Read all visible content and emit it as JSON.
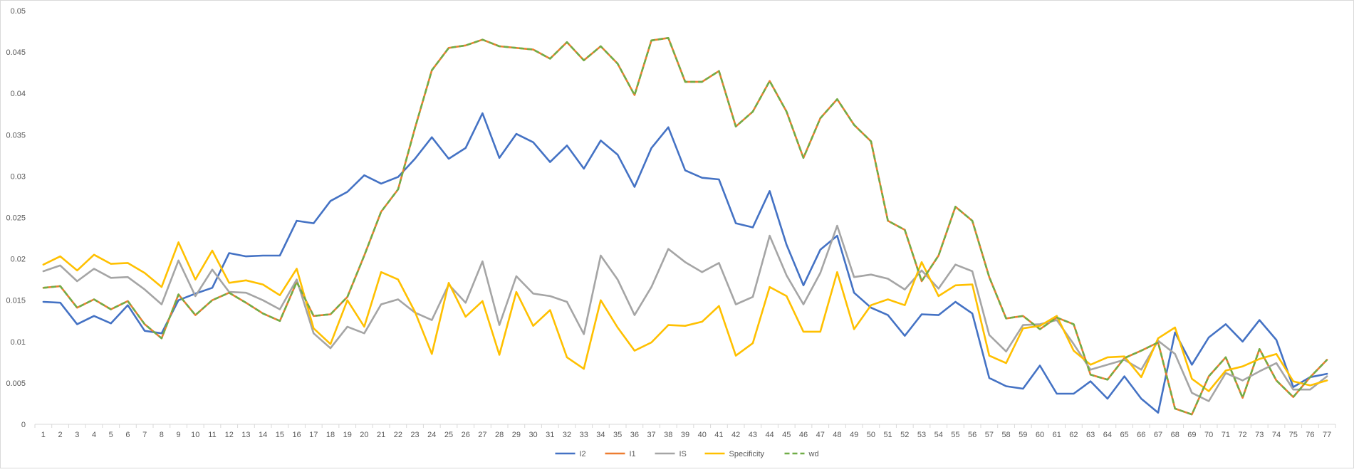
{
  "chart_data": {
    "type": "line",
    "title": "",
    "xlabel": "",
    "ylabel": "",
    "ylim": [
      0,
      0.05
    ],
    "y_ticks": [
      "0",
      "0.005",
      "0.01",
      "0.015",
      "0.02",
      "0.025",
      "0.03",
      "0.035",
      "0.04",
      "0.045",
      "0.05"
    ],
    "grid": false,
    "legend_position": "bottom",
    "categories": [
      "1",
      "2",
      "3",
      "4",
      "5",
      "6",
      "7",
      "8",
      "9",
      "10",
      "11",
      "12",
      "13",
      "14",
      "15",
      "16",
      "17",
      "18",
      "19",
      "20",
      "21",
      "22",
      "23",
      "24",
      "25",
      "26",
      "27",
      "28",
      "29",
      "30",
      "31",
      "32",
      "33",
      "34",
      "35",
      "36",
      "37",
      "38",
      "39",
      "40",
      "41",
      "42",
      "43",
      "44",
      "45",
      "46",
      "47",
      "48",
      "49",
      "50",
      "51",
      "52",
      "53",
      "54",
      "55",
      "56",
      "57",
      "58",
      "59",
      "60",
      "61",
      "62",
      "63",
      "64",
      "65",
      "66",
      "67",
      "68",
      "69",
      "70",
      "71",
      "72",
      "73",
      "74",
      "75",
      "76",
      "77"
    ],
    "series": [
      {
        "name": "I2",
        "color": "#4472C4",
        "dashed": false,
        "values": [
          0.0148,
          0.0147,
          0.0121,
          0.0131,
          0.0122,
          0.0144,
          0.0113,
          0.011,
          0.015,
          0.0158,
          0.0165,
          0.0207,
          0.0203,
          0.0204,
          0.0204,
          0.0246,
          0.0243,
          0.027,
          0.0281,
          0.0301,
          0.0291,
          0.0299,
          0.0321,
          0.0347,
          0.0321,
          0.0334,
          0.0376,
          0.0322,
          0.0351,
          0.0341,
          0.0317,
          0.0337,
          0.0309,
          0.0343,
          0.0326,
          0.0287,
          0.0334,
          0.0359,
          0.0307,
          0.0298,
          0.0296,
          0.0243,
          0.0238,
          0.0282,
          0.0217,
          0.0168,
          0.0211,
          0.0228,
          0.0159,
          0.0141,
          0.0132,
          0.0107,
          0.0133,
          0.0132,
          0.0148,
          0.0134,
          0.0056,
          0.0046,
          0.0043,
          0.0071,
          0.0037,
          0.0037,
          0.0052,
          0.0031,
          0.0058,
          0.0031,
          0.0014,
          0.0111,
          0.0072,
          0.0105,
          0.0121,
          0.01,
          0.0126,
          0.0102,
          0.0045,
          0.0057,
          0.0061
        ]
      },
      {
        "name": "I1",
        "color": "#ED7D31",
        "dashed": false,
        "values": [
          0.0165,
          0.0167,
          0.0141,
          0.0151,
          0.0139,
          0.0149,
          0.0121,
          0.0104,
          0.0157,
          0.0132,
          0.015,
          0.0159,
          0.0147,
          0.0134,
          0.0125,
          0.0172,
          0.0131,
          0.0133,
          0.0154,
          0.0204,
          0.0257,
          0.0284,
          0.0358,
          0.0428,
          0.0455,
          0.0458,
          0.0465,
          0.0457,
          0.0455,
          0.0453,
          0.0442,
          0.0462,
          0.044,
          0.0457,
          0.0436,
          0.0398,
          0.0464,
          0.0467,
          0.0414,
          0.0414,
          0.0427,
          0.036,
          0.0378,
          0.0415,
          0.0378,
          0.0322,
          0.037,
          0.0393,
          0.0362,
          0.0342,
          0.0246,
          0.0235,
          0.0173,
          0.0204,
          0.0263,
          0.0246,
          0.0178,
          0.0128,
          0.0131,
          0.0115,
          0.0129,
          0.0121,
          0.006,
          0.0054,
          0.008,
          0.0089,
          0.0099,
          0.0019,
          0.0012,
          0.0058,
          0.0081,
          0.0032,
          0.0091,
          0.0053,
          0.0033,
          0.0057,
          0.0078
        ]
      },
      {
        "name": "IS",
        "color": "#A5A5A5",
        "dashed": false,
        "values": [
          0.0185,
          0.0192,
          0.0173,
          0.0188,
          0.0177,
          0.0178,
          0.0163,
          0.0145,
          0.0198,
          0.0155,
          0.0187,
          0.016,
          0.0159,
          0.015,
          0.0139,
          0.0175,
          0.011,
          0.0092,
          0.0118,
          0.011,
          0.0145,
          0.0151,
          0.0135,
          0.0126,
          0.0169,
          0.0147,
          0.0197,
          0.012,
          0.0179,
          0.0158,
          0.0155,
          0.0148,
          0.0109,
          0.0204,
          0.0175,
          0.0132,
          0.0166,
          0.0212,
          0.0196,
          0.0184,
          0.0195,
          0.0145,
          0.0154,
          0.0228,
          0.018,
          0.0145,
          0.0183,
          0.024,
          0.0178,
          0.0181,
          0.0176,
          0.0163,
          0.0186,
          0.0164,
          0.0193,
          0.0185,
          0.0108,
          0.0088,
          0.012,
          0.0121,
          0.0126,
          0.0097,
          0.0066,
          0.0072,
          0.0078,
          0.0066,
          0.0101,
          0.0085,
          0.0038,
          0.0028,
          0.0062,
          0.0053,
          0.0064,
          0.0074,
          0.0042,
          0.0042,
          0.0058
        ]
      },
      {
        "name": "Specificity",
        "color": "#FFC000",
        "dashed": false,
        "values": [
          0.0193,
          0.0203,
          0.0186,
          0.0205,
          0.0194,
          0.0195,
          0.0183,
          0.0166,
          0.022,
          0.0175,
          0.021,
          0.0171,
          0.0174,
          0.0169,
          0.0156,
          0.0188,
          0.0116,
          0.0097,
          0.015,
          0.0118,
          0.0184,
          0.0175,
          0.0136,
          0.0085,
          0.0171,
          0.013,
          0.0149,
          0.0084,
          0.016,
          0.0119,
          0.0138,
          0.0081,
          0.0067,
          0.015,
          0.0117,
          0.0089,
          0.0099,
          0.012,
          0.0119,
          0.0124,
          0.0143,
          0.0083,
          0.0098,
          0.0166,
          0.0155,
          0.0112,
          0.0112,
          0.0184,
          0.0115,
          0.0144,
          0.0151,
          0.0144,
          0.0196,
          0.0155,
          0.0168,
          0.0169,
          0.0083,
          0.0074,
          0.0116,
          0.0119,
          0.0131,
          0.0089,
          0.0072,
          0.0081,
          0.0082,
          0.0057,
          0.0104,
          0.0117,
          0.0055,
          0.004,
          0.0065,
          0.007,
          0.0079,
          0.0085,
          0.0052,
          0.0047,
          0.0053
        ]
      },
      {
        "name": "wd",
        "color": "#70AD47",
        "dashed": true,
        "values": [
          0.0165,
          0.0167,
          0.0141,
          0.0151,
          0.0139,
          0.0149,
          0.0121,
          0.0104,
          0.0157,
          0.0132,
          0.015,
          0.0159,
          0.0147,
          0.0134,
          0.0125,
          0.0172,
          0.0131,
          0.0133,
          0.0154,
          0.0204,
          0.0257,
          0.0284,
          0.0358,
          0.0428,
          0.0455,
          0.0458,
          0.0465,
          0.0457,
          0.0455,
          0.0453,
          0.0442,
          0.0462,
          0.044,
          0.0457,
          0.0436,
          0.0398,
          0.0464,
          0.0467,
          0.0414,
          0.0414,
          0.0427,
          0.036,
          0.0378,
          0.0415,
          0.0378,
          0.0322,
          0.037,
          0.0393,
          0.0362,
          0.0342,
          0.0246,
          0.0235,
          0.0173,
          0.0204,
          0.0263,
          0.0246,
          0.0178,
          0.0128,
          0.0131,
          0.0115,
          0.0129,
          0.0121,
          0.006,
          0.0054,
          0.008,
          0.0089,
          0.0099,
          0.0019,
          0.0012,
          0.0058,
          0.0081,
          0.0032,
          0.0091,
          0.0053,
          0.0033,
          0.0057,
          0.0078
        ]
      }
    ]
  }
}
